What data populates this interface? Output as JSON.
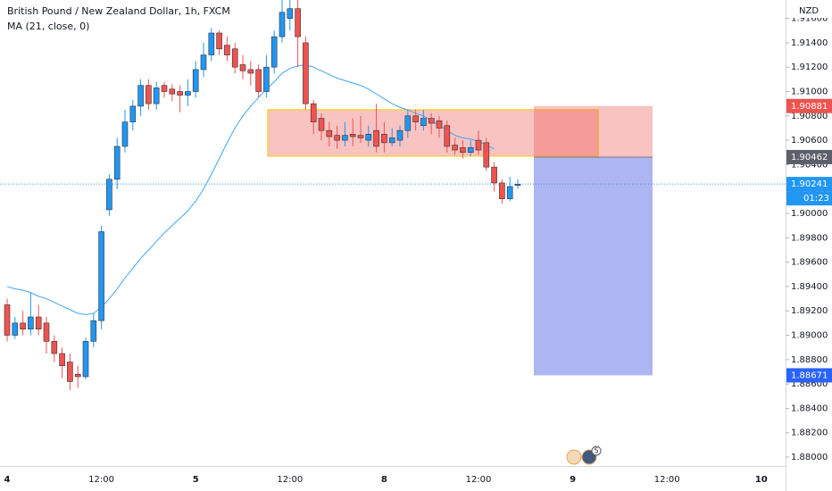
{
  "chart_data": {
    "type": "candlestick",
    "title": "British Pound / New Zealand Dollar, 1h, FXCM",
    "indicator_label": "MA (21, close, 0)",
    "currency": "NZD",
    "x_labels": [
      "4",
      "12:00",
      "5",
      "12:00",
      "8",
      "12:00",
      "9",
      "12:00",
      "10"
    ],
    "ylim": [
      1.87927,
      1.91751
    ],
    "yticks": [
      {
        "value": 1.88,
        "label": "1.88000"
      },
      {
        "value": 1.882,
        "label": "1.88200"
      },
      {
        "value": 1.884,
        "label": "1.88400"
      },
      {
        "value": 1.886,
        "label": "1.88600"
      },
      {
        "value": 1.888,
        "label": "1.88800"
      },
      {
        "value": 1.89,
        "label": "1.89000"
      },
      {
        "value": 1.892,
        "label": "1.89200"
      },
      {
        "value": 1.894,
        "label": "1.89400"
      },
      {
        "value": 1.896,
        "label": "1.89600"
      },
      {
        "value": 1.898,
        "label": "1.89800"
      },
      {
        "value": 1.9,
        "label": "1.90000"
      },
      {
        "value": 1.902,
        "label": "1.90200"
      },
      {
        "value": 1.904,
        "label": "1.90400"
      },
      {
        "value": 1.906,
        "label": "1.90600"
      },
      {
        "value": 1.908,
        "label": "1.90800"
      },
      {
        "value": 1.91,
        "label": "1.91000"
      },
      {
        "value": 1.912,
        "label": "1.91200"
      },
      {
        "value": 1.914,
        "label": "1.91400"
      },
      {
        "value": 1.916,
        "label": "1.91600"
      }
    ],
    "up_color": "#2196f3",
    "down_color": "#ef5350",
    "open": [
      1.8925,
      1.89,
      1.891,
      1.8905,
      1.8915,
      1.891,
      1.8895,
      1.8885,
      1.8878,
      1.8868,
      1.8866,
      1.8895,
      1.8912,
      1.9003,
      1.9028,
      1.9055,
      1.9075,
      1.9088,
      1.9105,
      1.909,
      1.9105,
      1.9102,
      1.91,
      1.9097,
      1.91,
      1.9118,
      1.913,
      1.9148,
      1.9138,
      1.9135,
      1.9122,
      1.9118,
      1.9118,
      1.91,
      1.912,
      1.9145,
      1.916,
      1.9168,
      1.914,
      1.909,
      1.9078,
      1.9068,
      1.9064,
      1.906,
      1.9065,
      1.9064,
      1.906,
      1.9068,
      1.9065,
      1.9058,
      1.906,
      1.9068,
      1.908,
      1.9072,
      1.9078,
      1.9076,
      1.9072,
      1.9056,
      1.9054,
      1.905,
      1.906,
      1.9058,
      1.9038,
      1.9025,
      1.9012,
      1.9023
    ],
    "high": [
      1.893,
      1.8915,
      1.892,
      1.8935,
      1.8925,
      1.8915,
      1.89,
      1.889,
      1.8885,
      1.8875,
      1.8898,
      1.8918,
      1.899,
      1.9032,
      1.9062,
      1.9085,
      1.9093,
      1.911,
      1.911,
      1.9108,
      1.9108,
      1.9106,
      1.9105,
      1.911,
      1.9125,
      1.914,
      1.9152,
      1.915,
      1.9145,
      1.914,
      1.913,
      1.9125,
      1.9122,
      1.913,
      1.915,
      1.9175,
      1.9175,
      1.918,
      1.9145,
      1.9093,
      1.9082,
      1.9075,
      1.9072,
      1.9075,
      1.9078,
      1.908,
      1.9072,
      1.909,
      1.9075,
      1.907,
      1.9072,
      1.9085,
      1.9085,
      1.9085,
      1.9082,
      1.908,
      1.9076,
      1.9062,
      1.906,
      1.906,
      1.9068,
      1.9062,
      1.9042,
      1.9028,
      1.903,
      1.9028
    ],
    "low": [
      1.8895,
      1.8897,
      1.89,
      1.89,
      1.89,
      1.8885,
      1.8878,
      1.8865,
      1.8855,
      1.8857,
      1.8864,
      1.889,
      1.8905,
      1.8998,
      1.902,
      1.905,
      1.9068,
      1.908,
      1.9085,
      1.9085,
      1.9095,
      1.9092,
      1.9083,
      1.9088,
      1.9095,
      1.9112,
      1.9125,
      1.913,
      1.9125,
      1.9115,
      1.911,
      1.9105,
      1.9095,
      1.9095,
      1.9115,
      1.914,
      1.915,
      1.912,
      1.9085,
      1.9065,
      1.906,
      1.9055,
      1.9053,
      1.9055,
      1.9055,
      1.9058,
      1.9055,
      1.905,
      1.905,
      1.9055,
      1.9055,
      1.9062,
      1.9068,
      1.9068,
      1.9065,
      1.9062,
      1.905,
      1.9048,
      1.9045,
      1.9047,
      1.9048,
      1.9035,
      1.9018,
      1.9008,
      1.901,
      1.902
    ],
    "close": [
      1.89,
      1.891,
      1.8905,
      1.8915,
      1.8905,
      1.8895,
      1.8885,
      1.8875,
      1.8862,
      1.8866,
      1.8895,
      1.8912,
      1.8985,
      1.9028,
      1.9055,
      1.9075,
      1.9088,
      1.9105,
      1.909,
      1.9103,
      1.91,
      1.9098,
      1.9097,
      1.91,
      1.9118,
      1.913,
      1.9148,
      1.9135,
      1.913,
      1.912,
      1.9117,
      1.9115,
      1.91,
      1.912,
      1.9145,
      1.9165,
      1.9168,
      1.9145,
      1.909,
      1.9075,
      1.9068,
      1.9063,
      1.906,
      1.9064,
      1.9063,
      1.9062,
      1.9065,
      1.9055,
      1.9058,
      1.9062,
      1.9068,
      1.908,
      1.9075,
      1.9078,
      1.9074,
      1.907,
      1.9055,
      1.9052,
      1.905,
      1.9054,
      1.9052,
      1.9038,
      1.9025,
      1.9012,
      1.9022,
      1.9024
    ],
    "ma": {
      "color": "#42a5f5",
      "values": [
        1.894,
        1.8938,
        1.8937,
        1.8935,
        1.8932,
        1.893,
        1.8927,
        1.8924,
        1.8921,
        1.8918,
        1.8917,
        1.8918,
        1.8923,
        1.893,
        1.8938,
        1.8947,
        1.8955,
        1.8963,
        1.897,
        1.8977,
        1.8984,
        1.899,
        1.8996,
        1.9002,
        1.901,
        1.902,
        1.9032,
        1.9045,
        1.9058,
        1.907,
        1.908,
        1.9088,
        1.9095,
        1.9102,
        1.9108,
        1.9115,
        1.9119,
        1.9121,
        1.9122,
        1.912,
        1.9117,
        1.9114,
        1.9111,
        1.9109,
        1.9107,
        1.9105,
        1.9102,
        1.9098,
        1.9094,
        1.909,
        1.9087,
        1.9085,
        1.9082,
        1.908,
        1.9076,
        1.9072,
        1.9068,
        1.9064,
        1.9062,
        1.9061,
        1.9059,
        1.9056,
        1.9053,
        null,
        null,
        null
      ]
    },
    "zone": {
      "top": 1.9085,
      "bottom": 1.9047
    },
    "position": {
      "stop": 1.90881,
      "entry": 1.90462,
      "target": 1.88671
    },
    "last_price": 1.90241,
    "countdown": "01:23",
    "events_badge": "5"
  }
}
